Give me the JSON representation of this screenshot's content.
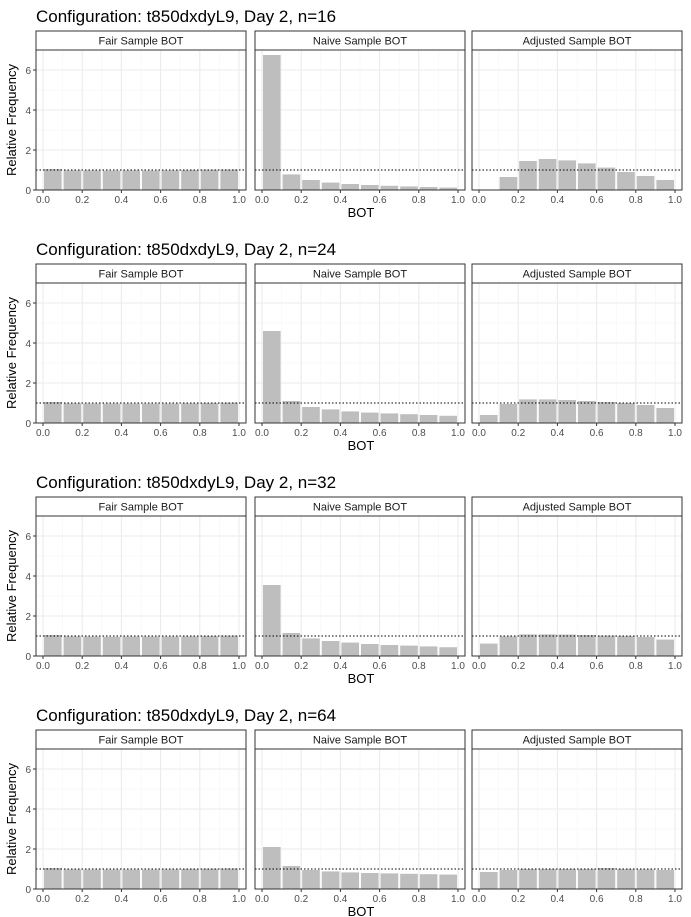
{
  "colors": {
    "bar": "#bebebe",
    "panel_border": "#333333",
    "strip_fill": "#ffffff",
    "grid_major": "#ebebeb",
    "grid_minor": "#f5f5f5",
    "reference_line": "#000000",
    "tick_label": "#4d4d4d",
    "title": "#000000"
  },
  "chart_data": [
    {
      "type": "bar",
      "title": "Configuration: t850dxdyL9, Day 2, n=16",
      "xlabel": "BOT",
      "ylabel": "Relative Frequency",
      "xlim": [
        0.0,
        1.0
      ],
      "ylim": [
        0,
        7
      ],
      "xticks": [
        "0.0",
        "0.2",
        "0.4",
        "0.6",
        "0.8",
        "1.0"
      ],
      "yticks": [
        "0",
        "2",
        "4",
        "6"
      ],
      "bin_centers": [
        0.05,
        0.15,
        0.25,
        0.35,
        0.45,
        0.55,
        0.65,
        0.75,
        0.85,
        0.95
      ],
      "reference_line": 1.0,
      "grid": true,
      "panels": [
        {
          "name": "Fair Sample BOT",
          "values": [
            1.05,
            0.98,
            0.98,
            0.97,
            0.98,
            0.97,
            0.98,
            1.0,
            1.02,
            1.03
          ]
        },
        {
          "name": "Naive Sample BOT",
          "values": [
            6.75,
            0.78,
            0.5,
            0.37,
            0.3,
            0.25,
            0.21,
            0.18,
            0.15,
            0.12
          ]
        },
        {
          "name": "Adjusted Sample BOT",
          "values": [
            0.0,
            0.65,
            1.45,
            1.55,
            1.48,
            1.33,
            1.12,
            0.9,
            0.7,
            0.5
          ]
        }
      ]
    },
    {
      "type": "bar",
      "title": "Configuration: t850dxdyL9, Day 2, n=24",
      "xlabel": "BOT",
      "ylabel": "Relative Frequency",
      "xlim": [
        0.0,
        1.0
      ],
      "ylim": [
        0,
        7
      ],
      "xticks": [
        "0.0",
        "0.2",
        "0.4",
        "0.6",
        "0.8",
        "1.0"
      ],
      "yticks": [
        "0",
        "2",
        "4",
        "6"
      ],
      "bin_centers": [
        0.05,
        0.15,
        0.25,
        0.35,
        0.45,
        0.55,
        0.65,
        0.75,
        0.85,
        0.95
      ],
      "reference_line": 1.0,
      "grid": true,
      "panels": [
        {
          "name": "Fair Sample BOT",
          "values": [
            1.05,
            0.98,
            0.97,
            0.97,
            0.97,
            0.97,
            0.97,
            0.98,
            1.0,
            1.02
          ]
        },
        {
          "name": "Naive Sample BOT",
          "values": [
            4.6,
            1.1,
            0.8,
            0.68,
            0.58,
            0.52,
            0.48,
            0.44,
            0.4,
            0.36
          ]
        },
        {
          "name": "Adjusted Sample BOT",
          "values": [
            0.4,
            0.95,
            1.18,
            1.18,
            1.15,
            1.1,
            1.05,
            1.0,
            0.9,
            0.75
          ]
        }
      ]
    },
    {
      "type": "bar",
      "title": "Configuration: t850dxdyL9, Day 2, n=32",
      "xlabel": "BOT",
      "ylabel": "Relative Frequency",
      "xlim": [
        0.0,
        1.0
      ],
      "ylim": [
        0,
        7
      ],
      "xticks": [
        "0.0",
        "0.2",
        "0.4",
        "0.6",
        "0.8",
        "1.0"
      ],
      "yticks": [
        "0",
        "2",
        "4",
        "6"
      ],
      "bin_centers": [
        0.05,
        0.15,
        0.25,
        0.35,
        0.45,
        0.55,
        0.65,
        0.75,
        0.85,
        0.95
      ],
      "reference_line": 1.0,
      "grid": true,
      "panels": [
        {
          "name": "Fair Sample BOT",
          "values": [
            1.05,
            0.98,
            0.97,
            0.96,
            0.97,
            0.97,
            0.97,
            0.98,
            1.0,
            1.02
          ]
        },
        {
          "name": "Naive Sample BOT",
          "values": [
            3.55,
            1.15,
            0.88,
            0.75,
            0.67,
            0.6,
            0.55,
            0.52,
            0.48,
            0.44
          ]
        },
        {
          "name": "Adjusted Sample BOT",
          "values": [
            0.62,
            0.98,
            1.08,
            1.08,
            1.07,
            1.05,
            1.02,
            1.0,
            0.95,
            0.82
          ]
        }
      ]
    },
    {
      "type": "bar",
      "title": "Configuration: t850dxdyL9, Day 2, n=64",
      "xlabel": "BOT",
      "ylabel": "Relative Frequency",
      "xlim": [
        0.0,
        1.0
      ],
      "ylim": [
        0,
        7
      ],
      "xticks": [
        "0.0",
        "0.2",
        "0.4",
        "0.6",
        "0.8",
        "1.0"
      ],
      "yticks": [
        "0",
        "2",
        "4",
        "6"
      ],
      "bin_centers": [
        0.05,
        0.15,
        0.25,
        0.35,
        0.45,
        0.55,
        0.65,
        0.75,
        0.85,
        0.95
      ],
      "reference_line": 1.0,
      "grid": true,
      "panels": [
        {
          "name": "Fair Sample BOT",
          "values": [
            1.05,
            0.98,
            0.97,
            0.97,
            0.97,
            0.97,
            0.98,
            1.0,
            1.02,
            1.03
          ]
        },
        {
          "name": "Naive Sample BOT",
          "values": [
            2.1,
            1.15,
            0.95,
            0.88,
            0.83,
            0.8,
            0.78,
            0.76,
            0.74,
            0.72
          ]
        },
        {
          "name": "Adjusted Sample BOT",
          "values": [
            0.85,
            0.95,
            1.0,
            1.0,
            1.0,
            1.0,
            1.05,
            1.0,
            0.98,
            0.95
          ]
        }
      ]
    }
  ]
}
